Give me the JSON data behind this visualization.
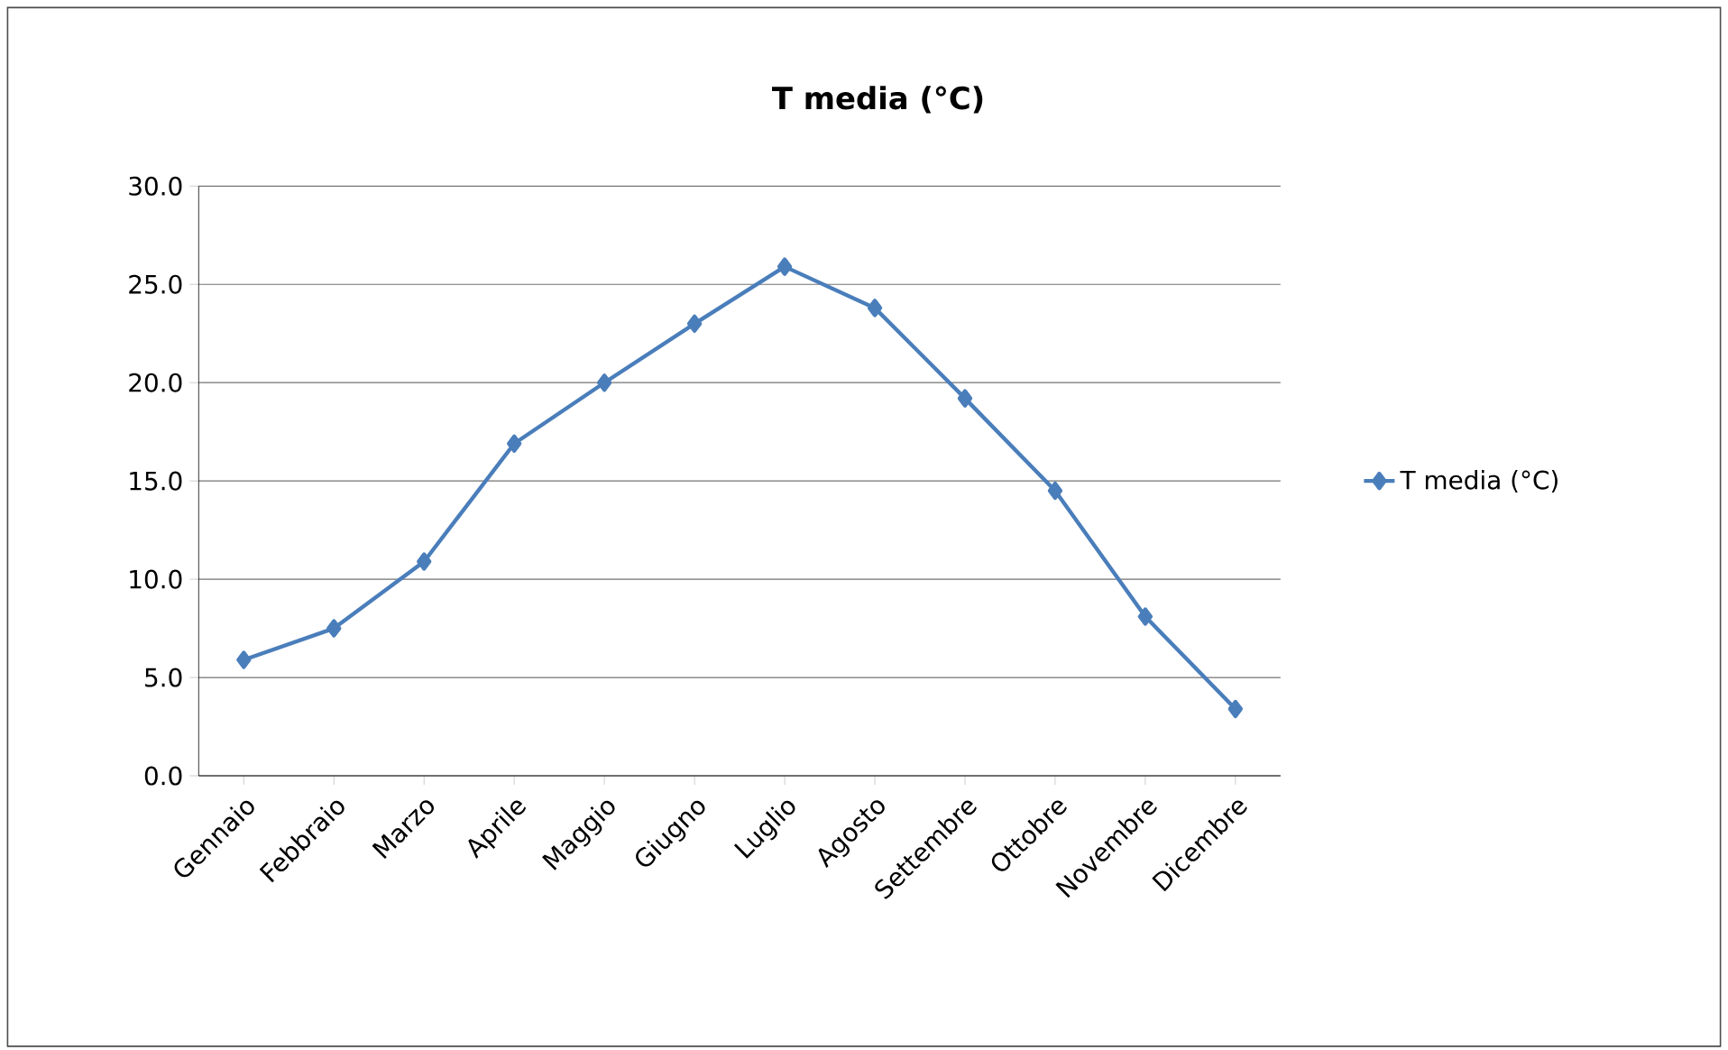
{
  "chart_data": {
    "type": "line",
    "title": "T media (°C)",
    "categories": [
      "Gennaio",
      "Febbraio",
      "Marzo",
      "Aprile",
      "Maggio",
      "Giugno",
      "Luglio",
      "Agosto",
      "Settembre",
      "Ottobre",
      "Novembre",
      "Dicembre"
    ],
    "series": [
      {
        "name": "T media (°C)",
        "color": "#4a7ebb",
        "values": [
          5.9,
          7.5,
          10.9,
          16.9,
          20.0,
          23.0,
          25.9,
          23.8,
          19.2,
          14.5,
          8.1,
          3.4
        ]
      }
    ],
    "ylim": [
      0,
      30
    ],
    "yticks": [
      {
        "value": 0,
        "label": "0.0"
      },
      {
        "value": 5,
        "label": "5.0"
      },
      {
        "value": 10,
        "label": "10.0"
      },
      {
        "value": 15,
        "label": "15.0"
      },
      {
        "value": 20,
        "label": "20.0"
      },
      {
        "value": 25,
        "label": "25.0"
      },
      {
        "value": 30,
        "label": "30.0"
      }
    ],
    "grid": "y",
    "legend": "right",
    "marker": "diamond",
    "line_style": "solid"
  }
}
